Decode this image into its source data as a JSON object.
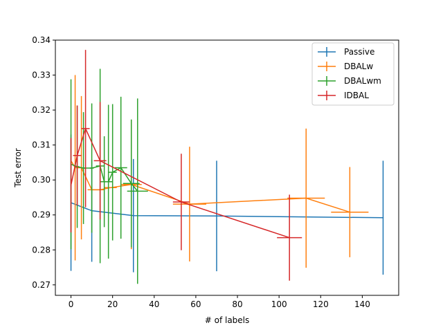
{
  "chart_data": {
    "type": "line",
    "title": "",
    "xlabel": "# of labels",
    "ylabel": "Test error",
    "xlim": [
      -7.5,
      157.5
    ],
    "ylim": [
      0.267,
      0.34
    ],
    "xticks": [
      0,
      20,
      40,
      60,
      80,
      100,
      120,
      140
    ],
    "yticks": [
      0.27,
      0.28,
      0.29,
      0.3,
      0.31,
      0.32,
      0.33,
      0.34
    ],
    "ytick_labels": [
      "0.27",
      "0.28",
      "0.29",
      "0.30",
      "0.31",
      "0.32",
      "0.33",
      "0.34"
    ],
    "grid": false,
    "legend_position": "top-right",
    "series": [
      {
        "name": "Passive",
        "color": "#1f77b4",
        "points": [
          {
            "x": 0,
            "y": 0.2935,
            "yerr": 0.0195,
            "xerr": 0
          },
          {
            "x": 10,
            "y": 0.2912,
            "yerr": 0.0146,
            "xerr": 0
          },
          {
            "x": 30,
            "y": 0.2898,
            "yerr": 0.0162,
            "xerr": 0
          },
          {
            "x": 70,
            "y": 0.2897,
            "yerr": 0.0158,
            "xerr": 0
          },
          {
            "x": 150,
            "y": 0.2892,
            "yerr": 0.0163,
            "xerr": 0
          }
        ]
      },
      {
        "name": "DBALw",
        "color": "#ff7f0e",
        "points": [
          {
            "x": 0,
            "y": 0.3055,
            "yerr": 0.0,
            "xerr": 0
          },
          {
            "x": 2,
            "y": 0.3035,
            "yerr": 0.0265,
            "xerr": 0
          },
          {
            "x": 5,
            "y": 0.3035,
            "yerr": 0.0205,
            "xerr": 0
          },
          {
            "x": 10,
            "y": 0.2972,
            "yerr": 0.0,
            "xerr": 2
          },
          {
            "x": 14,
            "y": 0.2972,
            "yerr": 0.0,
            "xerr": 2
          },
          {
            "x": 19,
            "y": 0.2978,
            "yerr": 0.0,
            "xerr": 3
          },
          {
            "x": 29,
            "y": 0.2987,
            "yerr": 0.0185,
            "xerr": 5
          },
          {
            "x": 57,
            "y": 0.2931,
            "yerr": 0.0164,
            "xerr": 8
          },
          {
            "x": 113,
            "y": 0.2948,
            "yerr": 0.0199,
            "xerr": 9
          },
          {
            "x": 134,
            "y": 0.2908,
            "yerr": 0.0129,
            "xerr": 9
          }
        ]
      },
      {
        "name": "DBALwm",
        "color": "#2ca02c",
        "points": [
          {
            "x": 0,
            "y": 0.3045,
            "yerr": 0.0243,
            "xerr": 0
          },
          {
            "x": 3,
            "y": 0.3038,
            "yerr": 0.0175,
            "xerr": 1
          },
          {
            "x": 6,
            "y": 0.3034,
            "yerr": 0.016,
            "xerr": 1
          },
          {
            "x": 10,
            "y": 0.3034,
            "yerr": 0.0185,
            "xerr": 1
          },
          {
            "x": 14,
            "y": 0.304,
            "yerr": 0.0278,
            "xerr": 2
          },
          {
            "x": 16,
            "y": 0.2995,
            "yerr": 0.013,
            "xerr": 2
          },
          {
            "x": 18,
            "y": 0.2995,
            "yerr": 0.022,
            "xerr": 2
          },
          {
            "x": 20,
            "y": 0.3022,
            "yerr": 0.0195,
            "xerr": 2
          },
          {
            "x": 24,
            "y": 0.3035,
            "yerr": 0.0203,
            "xerr": 3
          },
          {
            "x": 29,
            "y": 0.299,
            "yerr": 0.0183,
            "xerr": 4
          },
          {
            "x": 32,
            "y": 0.2968,
            "yerr": 0.0265,
            "xerr": 5
          }
        ]
      },
      {
        "name": "IDBAL",
        "color": "#d62728",
        "points": [
          {
            "x": 0,
            "y": 0.2985,
            "yerr": 0.0135,
            "xerr": 0
          },
          {
            "x": 3,
            "y": 0.307,
            "yerr": 0.0143,
            "xerr": 2
          },
          {
            "x": 7,
            "y": 0.3147,
            "yerr": 0.0225,
            "xerr": 2
          },
          {
            "x": 14,
            "y": 0.3055,
            "yerr": 0.0168,
            "xerr": 3
          },
          {
            "x": 53,
            "y": 0.2937,
            "yerr": 0.0138,
            "xerr": 4
          },
          {
            "x": 105,
            "y": 0.2835,
            "yerr": 0.0123,
            "xerr": 6
          }
        ]
      }
    ]
  }
}
